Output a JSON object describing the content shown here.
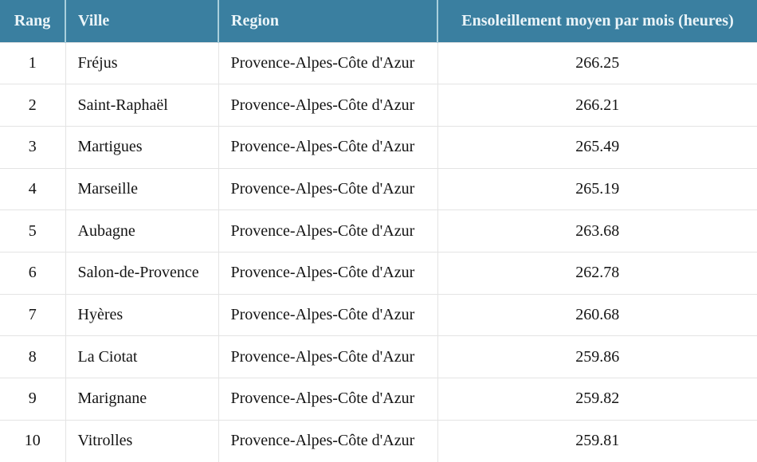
{
  "colors": {
    "header_bg": "#3A7FA0",
    "header_text": "#EAF4F8",
    "header_divider": "#A9CFDC",
    "row_border": "#E4E4E4",
    "body_text": "#141414",
    "body_bg": "#FFFFFF"
  },
  "table": {
    "columns": [
      {
        "key": "rang",
        "label": "Rang"
      },
      {
        "key": "ville",
        "label": "Ville"
      },
      {
        "key": "region",
        "label": "Region"
      },
      {
        "key": "valeur",
        "label": "Ensoleillement moyen par mois (heures)"
      }
    ],
    "rows": [
      {
        "rang": "1",
        "ville": "Fréjus",
        "region": "Provence-Alpes-Côte d'Azur",
        "valeur": "266.25"
      },
      {
        "rang": "2",
        "ville": "Saint-Raphaël",
        "region": "Provence-Alpes-Côte d'Azur",
        "valeur": "266.21"
      },
      {
        "rang": "3",
        "ville": "Martigues",
        "region": "Provence-Alpes-Côte d'Azur",
        "valeur": "265.49"
      },
      {
        "rang": "4",
        "ville": "Marseille",
        "region": "Provence-Alpes-Côte d'Azur",
        "valeur": "265.19"
      },
      {
        "rang": "5",
        "ville": "Aubagne",
        "region": "Provence-Alpes-Côte d'Azur",
        "valeur": "263.68"
      },
      {
        "rang": "6",
        "ville": "Salon-de-Provence",
        "region": "Provence-Alpes-Côte d'Azur",
        "valeur": "262.78"
      },
      {
        "rang": "7",
        "ville": "Hyères",
        "region": "Provence-Alpes-Côte d'Azur",
        "valeur": "260.68"
      },
      {
        "rang": "8",
        "ville": "La Ciotat",
        "region": "Provence-Alpes-Côte d'Azur",
        "valeur": "259.86"
      },
      {
        "rang": "9",
        "ville": "Marignane",
        "region": "Provence-Alpes-Côte d'Azur",
        "valeur": "259.82"
      },
      {
        "rang": "10",
        "ville": "Vitrolles",
        "region": "Provence-Alpes-Côte d'Azur",
        "valeur": "259.81"
      }
    ]
  }
}
